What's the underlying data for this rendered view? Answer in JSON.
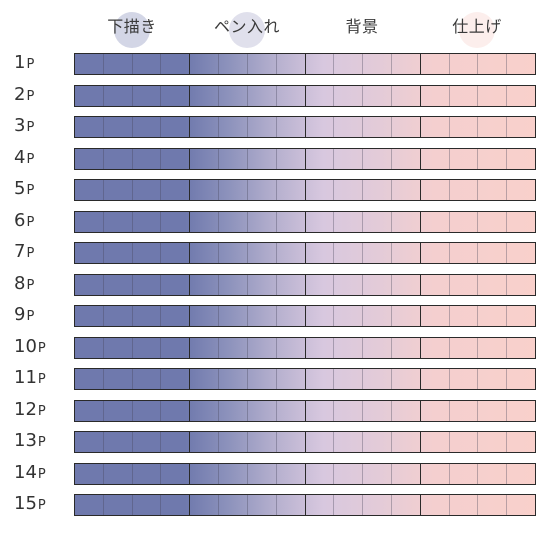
{
  "stages": [
    {
      "label": "下描き",
      "dot_color": "#c4c8de"
    },
    {
      "label": "ペン入れ",
      "dot_color": "#d6d6e6"
    },
    {
      "label": "背景",
      "dot_color": "#ffffff"
    },
    {
      "label": "仕上げ",
      "dot_color": "#fbe8e6"
    }
  ],
  "cells_per_stage": 4,
  "page_suffix": "P",
  "pages": [
    "1",
    "2",
    "3",
    "4",
    "5",
    "6",
    "7",
    "8",
    "9",
    "10",
    "11",
    "12",
    "13",
    "14",
    "15"
  ],
  "colors": {
    "sketch": "#6f79ad",
    "inking": "#9b9cc4",
    "background": "#dccbe0",
    "finishing": "#f9d0cb",
    "border": "#2a2a2a"
  }
}
